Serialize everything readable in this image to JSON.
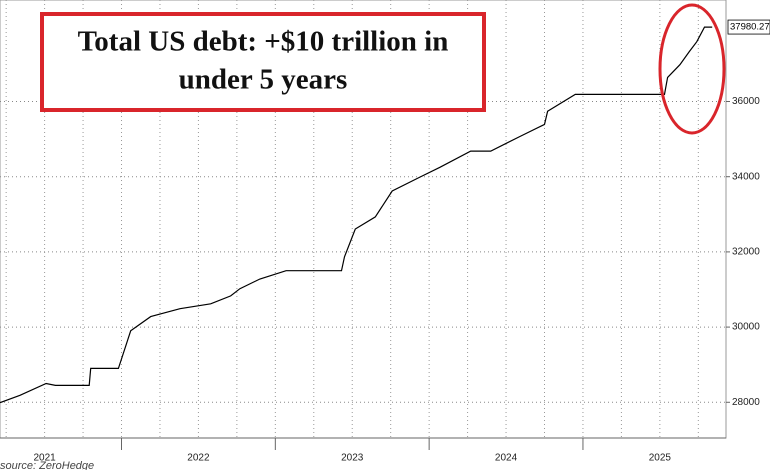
{
  "chart_data": {
    "type": "line",
    "annotation": [
      "Total US debt: +$10 trillion in",
      "under 5 years"
    ],
    "source": "source: ZeroHedge",
    "x": [
      2021.21,
      2021.34,
      2021.51,
      2021.57,
      2021.79,
      2021.8,
      2021.98,
      2022.06,
      2022.19,
      2022.38,
      2022.58,
      2022.71,
      2022.77,
      2022.9,
      2023.07,
      2023.43,
      2023.45,
      2023.52,
      2023.65,
      2023.76,
      2023.94,
      2024.07,
      2024.27,
      2024.4,
      2024.59,
      2024.75,
      2024.77,
      2024.95,
      2025.53,
      2025.55,
      2025.63,
      2025.69,
      2025.74,
      2025.79,
      2025.84
    ],
    "series": [
      {
        "color": "#000000",
        "values": [
          27990,
          28185,
          28500,
          28450,
          28450,
          28900,
          28900,
          29900,
          30280,
          30490,
          30620,
          30830,
          31020,
          31280,
          31500,
          31500,
          31870,
          32610,
          32930,
          33620,
          33990,
          34250,
          34680,
          34680,
          35070,
          35390,
          35740,
          36190,
          36190,
          36640,
          36980,
          37320,
          37590,
          37980.27,
          37980.27
        ]
      }
    ],
    "last_value": 37980.27,
    "xlim": [
      2021.21,
      2025.93
    ],
    "ylim": [
      27050,
      38700
    ],
    "xticks": [
      {
        "value": 2021.5,
        "label": "2021"
      },
      {
        "value": 2022.5,
        "label": "2022"
      },
      {
        "value": 2023.5,
        "label": "2023"
      },
      {
        "value": 2024.5,
        "label": "2024"
      },
      {
        "value": 2025.5,
        "label": "2025"
      }
    ],
    "yticks": [
      28000,
      30000,
      32000,
      34000,
      36000
    ],
    "grid": true,
    "highlight_color": "#d9252b"
  }
}
